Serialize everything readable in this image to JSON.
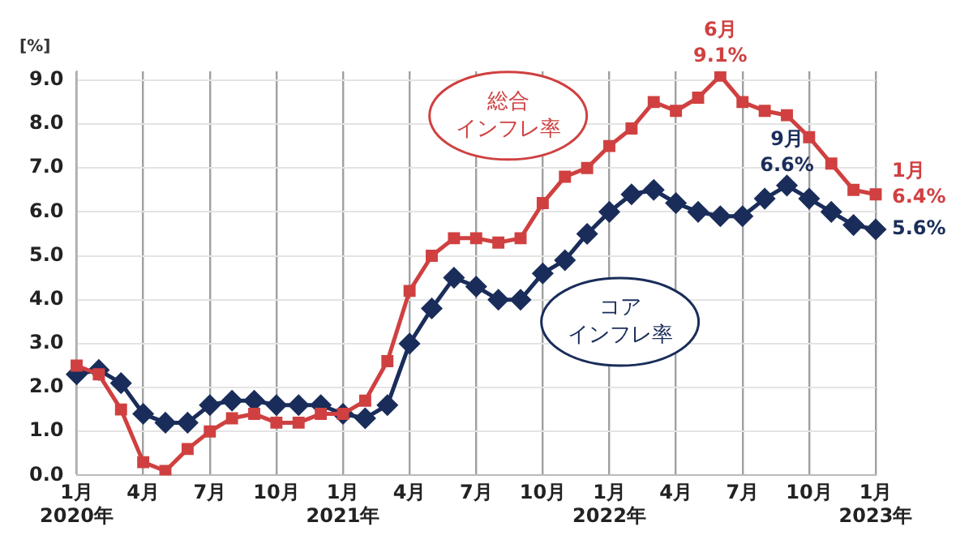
{
  "chart_data": {
    "type": "line",
    "ylabel": "[%]",
    "legend": false,
    "grid": true,
    "categories": [
      "1月\n2020年",
      null,
      null,
      "4月",
      null,
      null,
      "7月",
      null,
      null,
      "10月",
      null,
      null,
      "1月\n2021年",
      null,
      null,
      "4月",
      null,
      null,
      "7月",
      null,
      null,
      "10月",
      null,
      null,
      "1月\n2022年",
      null,
      null,
      "4月",
      null,
      null,
      "7月",
      null,
      null,
      "10月",
      null,
      null,
      "1月\n2023年"
    ],
    "ylim": [
      0,
      9.2
    ],
    "yticks": [
      {
        "value": 0,
        "label": "0.0"
      },
      {
        "value": 1,
        "label": "1.0"
      },
      {
        "value": 2,
        "label": "2.0"
      },
      {
        "value": 3,
        "label": "3.0"
      },
      {
        "value": 4,
        "label": "4.0"
      },
      {
        "value": 5,
        "label": "5.0"
      },
      {
        "value": 6,
        "label": "6.0"
      },
      {
        "value": 7,
        "label": "7.0"
      },
      {
        "value": 8,
        "label": "8.0"
      },
      {
        "value": 9,
        "label": "9.0"
      }
    ],
    "series": [
      {
        "name": "総合インフレ率",
        "color": "#d04040",
        "marker": "square",
        "values": [
          2.5,
          2.3,
          1.5,
          0.3,
          0.1,
          0.6,
          1.0,
          1.3,
          1.4,
          1.2,
          1.2,
          1.4,
          1.4,
          1.7,
          2.6,
          4.2,
          5.0,
          5.4,
          5.4,
          5.3,
          5.4,
          6.2,
          6.8,
          7.0,
          7.5,
          7.9,
          8.5,
          8.3,
          8.6,
          9.1,
          8.5,
          8.3,
          8.2,
          7.7,
          7.1,
          6.5,
          6.4
        ],
        "value_labels": [
          null,
          null,
          null,
          null,
          null,
          null,
          null,
          null,
          null,
          null,
          null,
          null,
          null,
          null,
          null,
          null,
          null,
          null,
          null,
          null,
          null,
          null,
          null,
          null,
          null,
          null,
          null,
          null,
          null,
          "6月\n9.1%",
          null,
          null,
          null,
          null,
          null,
          null,
          "1月\n6.4%"
        ]
      },
      {
        "name": "コアインフレ率",
        "color": "#1a2d5a",
        "marker": "diamond",
        "values": [
          2.3,
          2.4,
          2.1,
          1.4,
          1.2,
          1.2,
          1.6,
          1.7,
          1.7,
          1.6,
          1.6,
          1.6,
          1.4,
          1.3,
          1.6,
          3.0,
          3.8,
          4.5,
          4.3,
          4.0,
          4.0,
          4.6,
          4.9,
          5.5,
          6.0,
          6.4,
          6.5,
          6.2,
          6.0,
          5.9,
          5.9,
          6.3,
          6.6,
          6.3,
          6.0,
          5.7,
          5.6
        ],
        "value_labels": [
          null,
          null,
          null,
          null,
          null,
          null,
          null,
          null,
          null,
          null,
          null,
          null,
          null,
          null,
          null,
          null,
          null,
          null,
          null,
          null,
          null,
          null,
          null,
          null,
          null,
          null,
          null,
          null,
          null,
          null,
          null,
          null,
          "9月\n6.6%",
          null,
          null,
          null,
          "5.6%"
        ]
      }
    ]
  }
}
